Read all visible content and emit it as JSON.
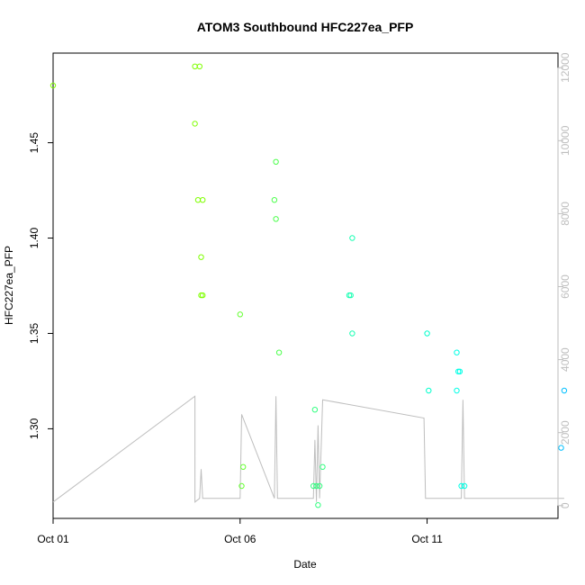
{
  "chart_data": {
    "type": "scatter",
    "title": "ATOM3 Southbound HFC227ea_PFP",
    "xlabel": "Date",
    "ylabel": "HFC227ea_PFP",
    "xlim": [
      "2016-10-01 00:00",
      "2016-10-14 12:00"
    ],
    "ylim": [
      1.253,
      1.497
    ],
    "x_ticks": [
      {
        "value": "2016-10-01 00:00",
        "label": "Oct 01"
      },
      {
        "value": "2016-10-06 00:00",
        "label": "Oct 06"
      },
      {
        "value": "2016-10-11 00:00",
        "label": "Oct 11"
      }
    ],
    "y_ticks": [
      1.3,
      1.35,
      1.4,
      1.45
    ],
    "y2lim": [
      -350,
      12400
    ],
    "y2_ticks": [
      0,
      2000,
      4000,
      6000,
      8000,
      10000,
      12000
    ],
    "grid": false,
    "points": [
      {
        "x": "2016-10-01 00:00",
        "y": 1.48,
        "color": "#7fff00"
      },
      {
        "x": "2016-10-04 19:00",
        "y": 1.49,
        "color": "#7fff00"
      },
      {
        "x": "2016-10-04 22:00",
        "y": 1.49,
        "color": "#7fff00"
      },
      {
        "x": "2016-10-04 19:00",
        "y": 1.46,
        "color": "#7fff00"
      },
      {
        "x": "2016-10-04 21:00",
        "y": 1.42,
        "color": "#7fff00"
      },
      {
        "x": "2016-10-05 00:00",
        "y": 1.42,
        "color": "#7fff00"
      },
      {
        "x": "2016-10-04 23:00",
        "y": 1.39,
        "color": "#7fff00"
      },
      {
        "x": "2016-10-04 23:00",
        "y": 1.37,
        "color": "#7fff00"
      },
      {
        "x": "2016-10-05 00:00",
        "y": 1.37,
        "color": "#7fff00"
      },
      {
        "x": "2016-10-06 00:00",
        "y": 1.36,
        "color": "#66ff33"
      },
      {
        "x": "2016-10-06 02:00",
        "y": 1.28,
        "color": "#66ff33"
      },
      {
        "x": "2016-10-06 01:00",
        "y": 1.27,
        "color": "#66ff33"
      },
      {
        "x": "2016-10-06 23:00",
        "y": 1.44,
        "color": "#4dff4d"
      },
      {
        "x": "2016-10-06 22:00",
        "y": 1.42,
        "color": "#4dff4d"
      },
      {
        "x": "2016-10-06 23:00",
        "y": 1.41,
        "color": "#4dff4d"
      },
      {
        "x": "2016-10-07 01:00",
        "y": 1.34,
        "color": "#4dff4d"
      },
      {
        "x": "2016-10-08 00:00",
        "y": 1.31,
        "color": "#33ff80"
      },
      {
        "x": "2016-10-07 23:00",
        "y": 1.27,
        "color": "#33ff80"
      },
      {
        "x": "2016-10-08 01:00",
        "y": 1.27,
        "color": "#33ff80"
      },
      {
        "x": "2016-10-08 03:00",
        "y": 1.27,
        "color": "#33ff80"
      },
      {
        "x": "2016-10-08 05:00",
        "y": 1.28,
        "color": "#33ff80"
      },
      {
        "x": "2016-10-08 02:00",
        "y": 1.26,
        "color": "#33ff80"
      },
      {
        "x": "2016-10-08 22:00",
        "y": 1.37,
        "color": "#1affb3"
      },
      {
        "x": "2016-10-08 23:00",
        "y": 1.37,
        "color": "#1affb3"
      },
      {
        "x": "2016-10-09 00:00",
        "y": 1.4,
        "color": "#1affb3"
      },
      {
        "x": "2016-10-09 00:00",
        "y": 1.35,
        "color": "#1affb3"
      },
      {
        "x": "2016-10-11 00:00",
        "y": 1.35,
        "color": "#00ffcc"
      },
      {
        "x": "2016-10-11 01:00",
        "y": 1.32,
        "color": "#00ffcc"
      },
      {
        "x": "2016-10-11 19:00",
        "y": 1.34,
        "color": "#00ffe6"
      },
      {
        "x": "2016-10-11 20:00",
        "y": 1.33,
        "color": "#00ffe6"
      },
      {
        "x": "2016-10-11 21:00",
        "y": 1.33,
        "color": "#00ffe6"
      },
      {
        "x": "2016-10-11 19:00",
        "y": 1.32,
        "color": "#00ffe6"
      },
      {
        "x": "2016-10-11 22:00",
        "y": 1.27,
        "color": "#00ffe6"
      },
      {
        "x": "2016-10-12 00:00",
        "y": 1.27,
        "color": "#00ffe6"
      },
      {
        "x": "2016-10-14 16:00",
        "y": 1.32,
        "color": "#00bfff"
      },
      {
        "x": "2016-10-14 14:00",
        "y": 1.29,
        "color": "#00bfff"
      }
    ],
    "altitude_line": [
      {
        "x": "2016-10-01 00:00",
        "y": 100
      },
      {
        "x": "2016-10-04 19:00",
        "y": 3000
      },
      {
        "x": "2016-10-04 19:00",
        "y": 100
      },
      {
        "x": "2016-10-04 22:00",
        "y": 200
      },
      {
        "x": "2016-10-04 23:00",
        "y": 1000
      },
      {
        "x": "2016-10-05 00:00",
        "y": 200
      },
      {
        "x": "2016-10-06 00:00",
        "y": 200
      },
      {
        "x": "2016-10-06 01:00",
        "y": 2500
      },
      {
        "x": "2016-10-06 22:00",
        "y": 200
      },
      {
        "x": "2016-10-06 23:00",
        "y": 3000
      },
      {
        "x": "2016-10-07 00:00",
        "y": 200
      },
      {
        "x": "2016-10-07 23:00",
        "y": 200
      },
      {
        "x": "2016-10-08 00:00",
        "y": 1800
      },
      {
        "x": "2016-10-08 01:00",
        "y": 100
      },
      {
        "x": "2016-10-08 02:00",
        "y": 2200
      },
      {
        "x": "2016-10-08 03:00",
        "y": 200
      },
      {
        "x": "2016-10-08 05:00",
        "y": 2900
      },
      {
        "x": "2016-10-10 22:00",
        "y": 2400
      },
      {
        "x": "2016-10-10 23:00",
        "y": 200
      },
      {
        "x": "2016-10-11 00:00",
        "y": 200
      },
      {
        "x": "2016-10-11 22:00",
        "y": 200
      },
      {
        "x": "2016-10-11 23:00",
        "y": 2900
      },
      {
        "x": "2016-10-12 00:00",
        "y": 200
      },
      {
        "x": "2016-10-14 16:00",
        "y": 200
      }
    ],
    "altitude_color": "#bebebe"
  }
}
